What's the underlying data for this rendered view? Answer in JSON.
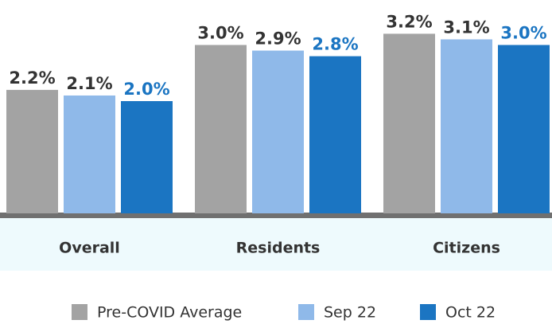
{
  "chart_data": {
    "type": "bar",
    "categories": [
      "Overall",
      "Residents",
      "Citizens"
    ],
    "series": [
      {
        "name": "Pre-COVID Average",
        "color": "#a3a3a3",
        "values": [
          2.2,
          3.0,
          3.2
        ],
        "value_labels": [
          "2.2%",
          "3.0%",
          "3.2%"
        ]
      },
      {
        "name": "Sep 22",
        "color": "#8fb9e9",
        "values": [
          2.1,
          2.9,
          3.1
        ],
        "value_labels": [
          "2.1%",
          "2.9%",
          "3.1%"
        ]
      },
      {
        "name": "Oct 22",
        "color": "#1b75c2",
        "values": [
          2.0,
          2.8,
          3.0
        ],
        "value_labels": [
          "2.0%",
          "2.8%",
          "3.0%"
        ]
      }
    ],
    "legend": "bottom"
  }
}
